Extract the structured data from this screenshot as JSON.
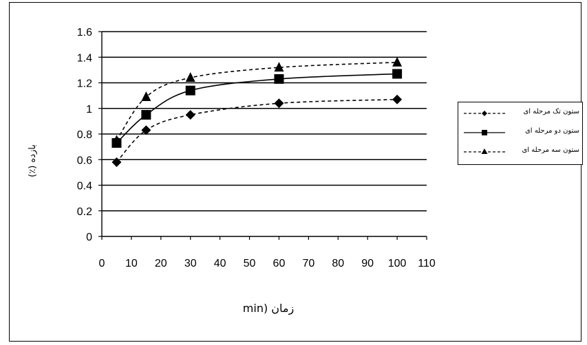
{
  "chart_data": {
    "type": "line",
    "xlabel": "زمان (min",
    "ylabel": "بازده (٪)",
    "xlim": [
      0,
      110
    ],
    "ylim": [
      0,
      1.6
    ],
    "xticks": [
      0,
      10,
      20,
      30,
      40,
      50,
      60,
      70,
      80,
      90,
      100,
      110
    ],
    "xtick_labels": [
      "0",
      "10",
      "20",
      "30",
      "40",
      "50",
      "60",
      "70",
      "80",
      "90",
      "100",
      "110"
    ],
    "yticks": [
      0,
      0.2,
      0.4,
      0.6,
      0.8,
      1.0,
      1.2,
      1.4,
      1.6
    ],
    "ytick_labels": [
      "0",
      "0.2",
      "0.4",
      "0.6",
      "0.8",
      "1",
      "1.2",
      "1.4",
      "1.6"
    ],
    "grid": "horizontal",
    "legend_position": "right",
    "series": [
      {
        "name": "ستون تک مرحله ای",
        "marker": "diamond",
        "line": "dashed",
        "color": "#000000",
        "x": [
          5,
          15,
          30,
          60,
          100
        ],
        "y": [
          0.58,
          0.83,
          0.95,
          1.04,
          1.07
        ]
      },
      {
        "name": "ستون دو مرحله ای",
        "marker": "square",
        "line": "solid",
        "color": "#000000",
        "x": [
          5,
          15,
          30,
          60,
          100
        ],
        "y": [
          0.73,
          0.95,
          1.14,
          1.23,
          1.27
        ]
      },
      {
        "name": "ستون سه مرحله ای",
        "marker": "triangle",
        "line": "dashed",
        "color": "#000000",
        "x": [
          5,
          15,
          30,
          60,
          100
        ],
        "y": [
          0.75,
          1.09,
          1.24,
          1.32,
          1.36
        ]
      }
    ]
  }
}
